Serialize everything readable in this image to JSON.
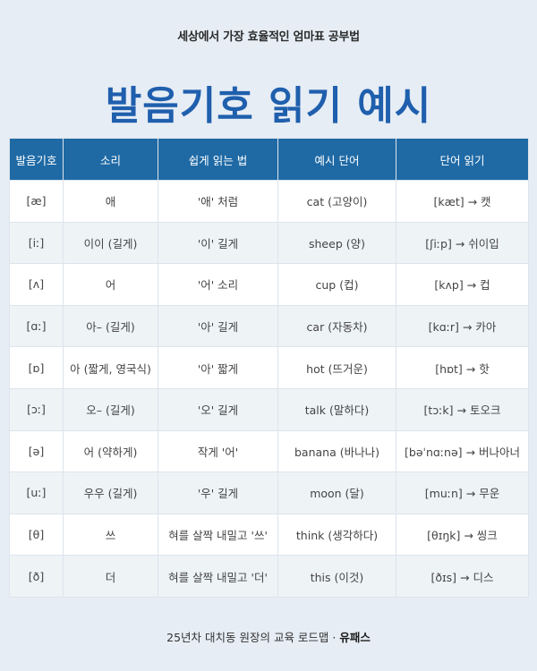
{
  "header": {
    "tagline": "세상에서 가장 효율적인 엄마표 공부법",
    "title": "발음기호 읽기 예시"
  },
  "table": {
    "columns": [
      "발음기호",
      "소리",
      "쉽게 읽는 법",
      "예시 단어",
      "단어 읽기"
    ],
    "rows": [
      [
        "[æ]",
        "애",
        "'애' 처럼",
        "cat (고양이)",
        "[kæt] → 캣"
      ],
      [
        "[iː]",
        "이이 (길게)",
        "'이' 길게",
        "sheep (양)",
        "[ʃiːp] → 쉬이입"
      ],
      [
        "[ʌ]",
        "어",
        "'어' 소리",
        "cup (컵)",
        "[kʌp] → 컵"
      ],
      [
        "[ɑː]",
        "아– (길게)",
        "'아' 길게",
        "car (자동차)",
        "[kɑːr] → 카아"
      ],
      [
        "[ɒ]",
        "아 (짧게, 영국식)",
        "'아' 짧게",
        "hot (뜨거운)",
        "[hɒt] → 핫"
      ],
      [
        "[ɔː]",
        "오– (길게)",
        "'오' 길게",
        "talk (말하다)",
        "[tɔːk] → 토오크"
      ],
      [
        "[ə]",
        "어 (약하게)",
        "작게 '어'",
        "banana (바나나)",
        "[bəˈnɑːnə] → 버나아너"
      ],
      [
        "[uː]",
        "우우 (길게)",
        "'우' 길게",
        "moon (달)",
        "[muːn] → 무운"
      ],
      [
        "[θ]",
        "쓰",
        "혀를 살짝 내밀고 '쓰'",
        "think (생각하다)",
        "[θɪŋk] → 씽크"
      ],
      [
        "[ð]",
        "더",
        "혀를 살짝 내밀고 '더'",
        "this (이것)",
        "[ðɪs] → 디스"
      ]
    ]
  },
  "footer": {
    "text": "25년차 대치동 원장의 교육 로드맵 ·",
    "brand": "유패스"
  }
}
